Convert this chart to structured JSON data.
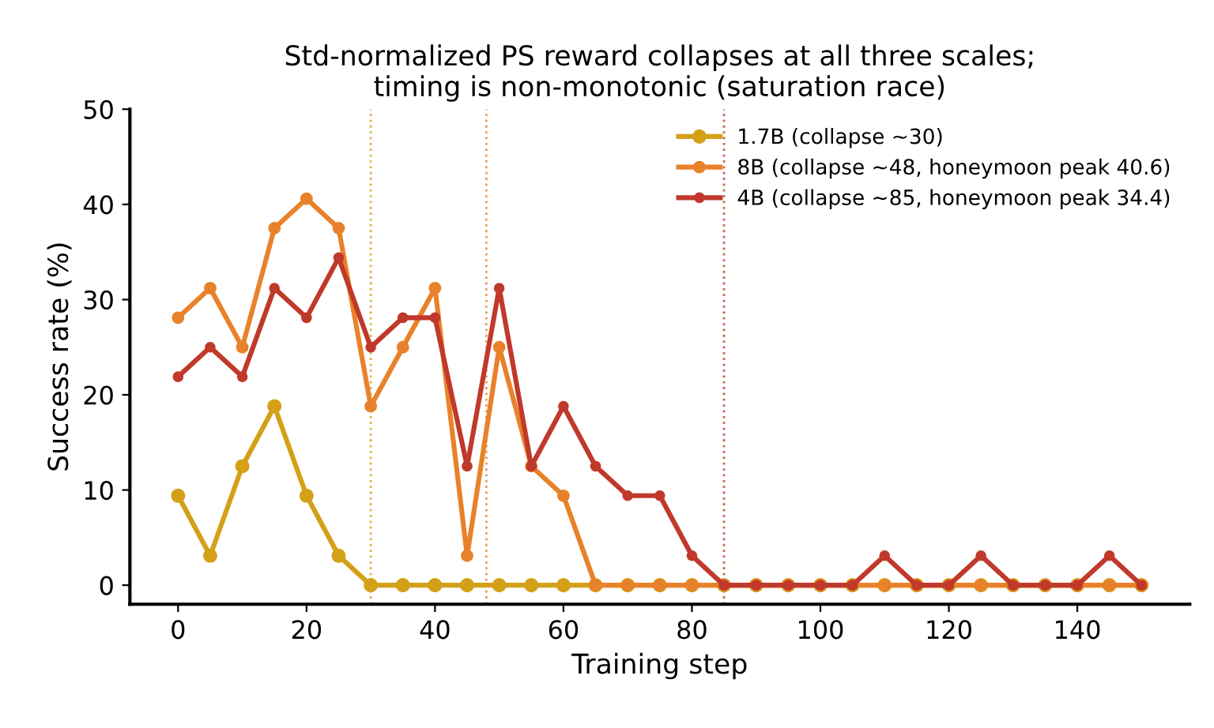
{
  "chart_data": {
    "type": "line",
    "title": "Std-normalized PS reward collapses at all three scales;\ntiming is non-monotonic (saturation race)",
    "xlabel": "Training step",
    "ylabel": "Success rate (%)",
    "x": [
      0,
      5,
      10,
      15,
      20,
      25,
      30,
      35,
      40,
      45,
      50,
      55,
      60,
      65,
      70,
      75,
      80,
      85,
      90,
      95,
      100,
      105,
      110,
      115,
      120,
      125,
      130,
      135,
      140,
      145,
      150
    ],
    "series": [
      {
        "name": "1.7B (collapse ~30)",
        "color": "#d4a017",
        "values": [
          9.4,
          3.1,
          12.5,
          18.8,
          9.4,
          3.1,
          0,
          0,
          0,
          0,
          0,
          0,
          0,
          0,
          0,
          0,
          0,
          0,
          0,
          0,
          0,
          0,
          0,
          0,
          0,
          0,
          0,
          0,
          0,
          0,
          0
        ]
      },
      {
        "name": "8B (collapse ~48, honeymoon peak 40.6)",
        "color": "#e8822a",
        "values": [
          28.1,
          31.2,
          25,
          37.5,
          40.6,
          37.5,
          18.8,
          25,
          31.2,
          3.1,
          25,
          12.5,
          9.4,
          0,
          0,
          0,
          0,
          0,
          0,
          0,
          0,
          0,
          0,
          0,
          0,
          0,
          0,
          0,
          0,
          0,
          0
        ]
      },
      {
        "name": "4B (collapse ~85, honeymoon peak 34.4)",
        "color": "#c0392b",
        "values": [
          21.9,
          25,
          21.9,
          31.2,
          28.1,
          34.4,
          25,
          28.1,
          28.1,
          12.5,
          31.2,
          12.5,
          18.8,
          12.5,
          9.4,
          9.4,
          3.1,
          0,
          0,
          0,
          0,
          0,
          3.1,
          0,
          0,
          3.1,
          0,
          0,
          0,
          3.1,
          0
        ]
      }
    ],
    "ref_lines": [
      {
        "axis": "x",
        "value": 30,
        "color": "#d4a017",
        "line_style": "dotted"
      },
      {
        "axis": "x",
        "value": 48,
        "color": "#e8822a",
        "line_style": "dotted"
      },
      {
        "axis": "x",
        "value": 85,
        "color": "#c0392b",
        "line_style": "dotted"
      }
    ],
    "xlim": [
      -7.5,
      157.5
    ],
    "ylim": [
      -2,
      50
    ],
    "xticks": [
      0,
      20,
      40,
      60,
      80,
      100,
      120,
      140
    ],
    "yticks": [
      0,
      10,
      20,
      30,
      40,
      50
    ],
    "marker": "circle",
    "line_style": "solid",
    "legend": "top right",
    "grid": false
  }
}
